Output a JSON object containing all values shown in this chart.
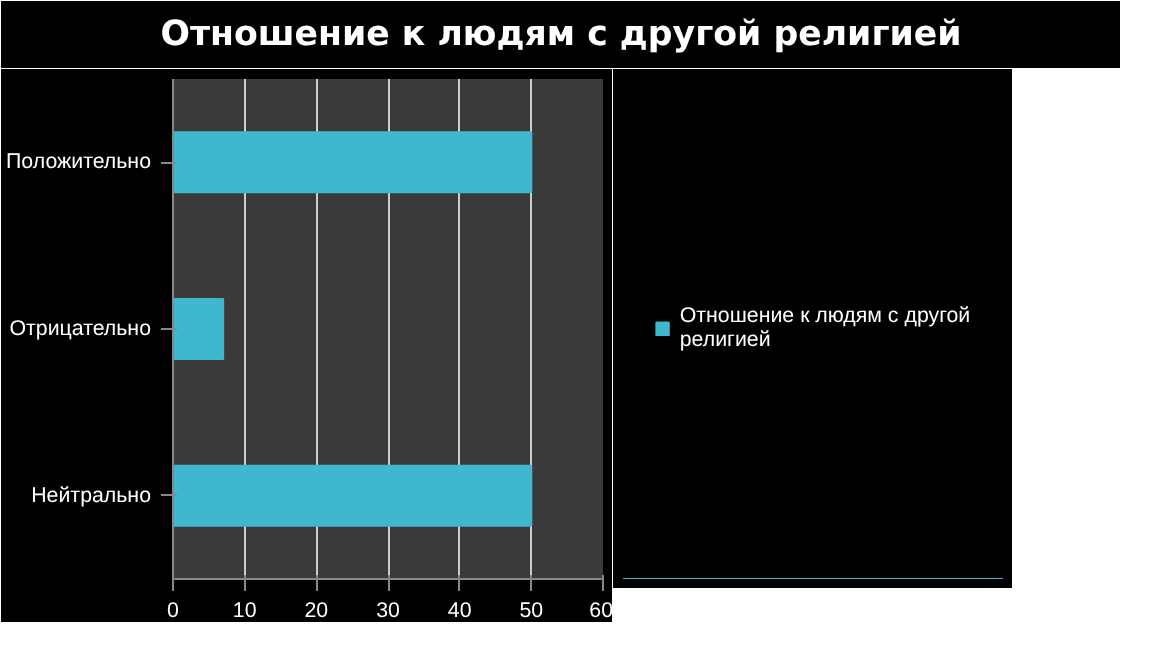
{
  "chart_data": {
    "type": "bar",
    "orientation": "horizontal",
    "title": "Отношение к людям с другой религией",
    "categories": [
      "Положительно",
      "Отрицательно",
      "Нейтрально"
    ],
    "series": [
      {
        "name": "Отношение к людям с другой религией",
        "color": "#3fb8cf",
        "values": [
          50,
          7,
          50
        ]
      }
    ],
    "xlim": [
      0,
      60
    ],
    "xticks": [
      0,
      10,
      20,
      30,
      40,
      50,
      60
    ],
    "grid": "x",
    "legend": "right"
  }
}
